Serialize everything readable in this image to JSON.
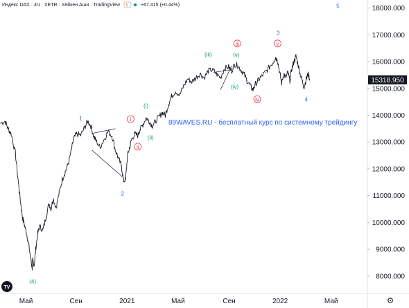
{
  "header": {
    "symbol_title": "Индекс DAX · 4Ч · XETR · Хейкен Аши · TradingView",
    "change": "+67.415 (+0.44%)",
    "currency_icon": "euro-icon",
    "colors": {
      "text": "#131722",
      "up": "#089981"
    }
  },
  "banner": {
    "text": "89WAVES.RU - бесплатный курс по системному трейдингу",
    "color": "#2962ff"
  },
  "price_tag": {
    "value": "15318.950"
  },
  "logo": {
    "text": "TV"
  },
  "settings_icon": "gear-icon",
  "colors": {
    "series": "#131722",
    "axis_text": "#131722",
    "border": "#e0e3eb",
    "tag_bg": "#131722"
  },
  "chart_data": {
    "type": "line",
    "series": [
      {
        "values": [
          [
            0.005,
            13700
          ],
          [
            0.05,
            13780
          ],
          [
            0.08,
            13500
          ],
          [
            0.11,
            13300
          ],
          [
            0.15,
            12600
          ],
          [
            0.18,
            11500
          ],
          [
            0.2,
            10800
          ],
          [
            0.22,
            10200
          ],
          [
            0.24,
            9900
          ],
          [
            0.26,
            9600
          ],
          [
            0.28,
            9200
          ],
          [
            0.305,
            8550
          ],
          [
            0.315,
            8300
          ],
          [
            0.32,
            8600
          ],
          [
            0.335,
            8400
          ],
          [
            0.35,
            9000
          ],
          [
            0.37,
            9600
          ],
          [
            0.39,
            9850
          ],
          [
            0.42,
            9700
          ],
          [
            0.45,
            10200
          ],
          [
            0.48,
            10700
          ],
          [
            0.5,
            10500
          ],
          [
            0.52,
            10900
          ],
          [
            0.55,
            10550
          ],
          [
            0.58,
            11100
          ],
          [
            0.61,
            11600
          ],
          [
            0.64,
            11900
          ],
          [
            0.67,
            12200
          ],
          [
            0.7,
            12700
          ],
          [
            0.72,
            13100
          ],
          [
            0.75,
            13300
          ],
          [
            0.79,
            13250
          ],
          [
            0.83,
            13550
          ],
          [
            0.86,
            13780
          ],
          [
            0.89,
            13600
          ],
          [
            0.92,
            13200
          ],
          [
            0.94,
            13050
          ],
          [
            0.98,
            12800
          ],
          [
            1.02,
            13100
          ],
          [
            1.06,
            13400
          ],
          [
            1.1,
            13200
          ],
          [
            1.13,
            12700
          ],
          [
            1.16,
            12400
          ],
          [
            1.19,
            12100
          ],
          [
            1.21,
            11550
          ],
          [
            1.23,
            11600
          ],
          [
            1.25,
            12500
          ],
          [
            1.27,
            12800
          ],
          [
            1.29,
            13100
          ],
          [
            1.32,
            13300
          ],
          [
            1.35,
            13250
          ],
          [
            1.37,
            13450
          ],
          [
            1.4,
            13650
          ],
          [
            1.43,
            13900
          ],
          [
            1.46,
            13800
          ],
          [
            1.49,
            13600
          ],
          [
            1.52,
            13750
          ],
          [
            1.56,
            13950
          ],
          [
            1.59,
            14100
          ],
          [
            1.62,
            14000
          ],
          [
            1.65,
            14400
          ],
          [
            1.68,
            14700
          ],
          [
            1.72,
            14900
          ],
          [
            1.76,
            14750
          ],
          [
            1.8,
            15100
          ],
          [
            1.84,
            15350
          ],
          [
            1.88,
            15250
          ],
          [
            1.92,
            15400
          ],
          [
            1.96,
            15550
          ],
          [
            2.0,
            15400
          ],
          [
            2.04,
            15650
          ],
          [
            2.08,
            15700
          ],
          [
            2.12,
            15550
          ],
          [
            2.16,
            15400
          ],
          [
            2.2,
            15750
          ],
          [
            2.24,
            15800
          ],
          [
            2.27,
            15650
          ],
          [
            2.3,
            15900
          ],
          [
            2.33,
            15850
          ],
          [
            2.36,
            15700
          ],
          [
            2.39,
            15550
          ],
          [
            2.42,
            15300
          ],
          [
            2.45,
            15100
          ],
          [
            2.48,
            14950
          ],
          [
            2.5,
            15150
          ],
          [
            2.53,
            15300
          ],
          [
            2.56,
            15450
          ],
          [
            2.6,
            15600
          ],
          [
            2.64,
            15800
          ],
          [
            2.68,
            16000
          ],
          [
            2.7,
            16150
          ],
          [
            2.72,
            16050
          ],
          [
            2.74,
            15600
          ],
          [
            2.76,
            15200
          ],
          [
            2.78,
            15550
          ],
          [
            2.8,
            15400
          ],
          [
            2.82,
            15600
          ],
          [
            2.84,
            15300
          ],
          [
            2.86,
            15750
          ],
          [
            2.88,
            16000
          ],
          [
            2.9,
            16200
          ],
          [
            2.92,
            15900
          ],
          [
            2.94,
            15550
          ],
          [
            2.96,
            15300
          ],
          [
            2.98,
            15050
          ],
          [
            3.0,
            15350
          ],
          [
            3.02,
            15550
          ],
          [
            3.035,
            15318.95
          ]
        ]
      }
    ],
    "x_ticks": [
      {
        "label": "Май",
        "x": 0.255
      },
      {
        "label": "Сен",
        "x": 0.745
      },
      {
        "label": "2021",
        "x": 1.245
      },
      {
        "label": "Май",
        "x": 1.745
      },
      {
        "label": "Сен",
        "x": 2.245
      },
      {
        "label": "2022",
        "x": 2.745
      },
      {
        "label": "Май",
        "x": 3.245
      }
    ],
    "y_ticks": [
      8000,
      9000,
      10000,
      11000,
      12000,
      13000,
      14000,
      15000,
      16000,
      17000,
      18000
    ],
    "y_tick_labels": [
      "8000.000",
      "9000.000",
      "10000.000",
      "11000.000",
      "12000.000",
      "13000.000",
      "14000.000",
      "15000.000",
      "16000.000",
      "17000.000",
      "18000.000"
    ],
    "xlim": [
      0,
      3.6
    ],
    "ylim": [
      7350,
      18300
    ],
    "grid": false,
    "wave_labels": [
      {
        "text": "5",
        "x": 3.31,
        "y": 18000,
        "color": "#2962ff",
        "circled": false
      },
      {
        "text": "3",
        "x": 2.725,
        "y": 17000,
        "color": "#2962ff",
        "circled": false
      },
      {
        "text": "1",
        "x": 0.79,
        "y": 13800,
        "color": "#2962ff",
        "circled": false
      },
      {
        "text": "2",
        "x": 1.2,
        "y": 11000,
        "color": "#2962ff",
        "circled": false
      },
      {
        "text": "4",
        "x": 3.0,
        "y": 14520,
        "color": "#2962ff",
        "circled": false
      },
      {
        "text": "(4)",
        "x": 0.32,
        "y": 7720,
        "color": "#089981",
        "circled": false
      },
      {
        "text": "(iii)",
        "x": 2.04,
        "y": 16200,
        "color": "#089981",
        "circled": false
      },
      {
        "text": "(v)",
        "x": 2.315,
        "y": 16180,
        "color": "#089981",
        "circled": false
      },
      {
        "text": "(iv)",
        "x": 2.3,
        "y": 15000,
        "color": "#089981",
        "circled": false
      },
      {
        "text": "(i)",
        "x": 1.43,
        "y": 14280,
        "color": "#089981",
        "circled": false
      },
      {
        "text": "(ii)",
        "x": 1.475,
        "y": 13100,
        "color": "#089981",
        "circled": false
      },
      {
        "text": "iii",
        "x": 2.325,
        "y": 16600,
        "color": "#f23645",
        "circled": true
      },
      {
        "text": "v",
        "x": 2.72,
        "y": 16600,
        "color": "#f23645",
        "circled": true
      },
      {
        "text": "iv",
        "x": 2.52,
        "y": 14520,
        "color": "#f23645",
        "circled": true
      },
      {
        "text": "i",
        "x": 1.28,
        "y": 13780,
        "color": "#f23645",
        "circled": true
      },
      {
        "text": "ii",
        "x": 1.35,
        "y": 12750,
        "color": "#f23645",
        "circled": true
      }
    ],
    "trend_lines": [
      {
        "points": [
          [
            0.9,
            13320
          ],
          [
            1.13,
            13500
          ]
        ],
        "color": "#131722"
      },
      {
        "points": [
          [
            0.9,
            12700
          ],
          [
            1.2,
            11700
          ]
        ],
        "color": "#131722"
      },
      {
        "points": [
          [
            2.16,
            14950
          ],
          [
            2.27,
            15850
          ]
        ],
        "color": "#131722"
      },
      {
        "points": [
          [
            2.09,
            15600
          ],
          [
            2.27,
            15700
          ]
        ],
        "color": "#131722"
      }
    ]
  }
}
